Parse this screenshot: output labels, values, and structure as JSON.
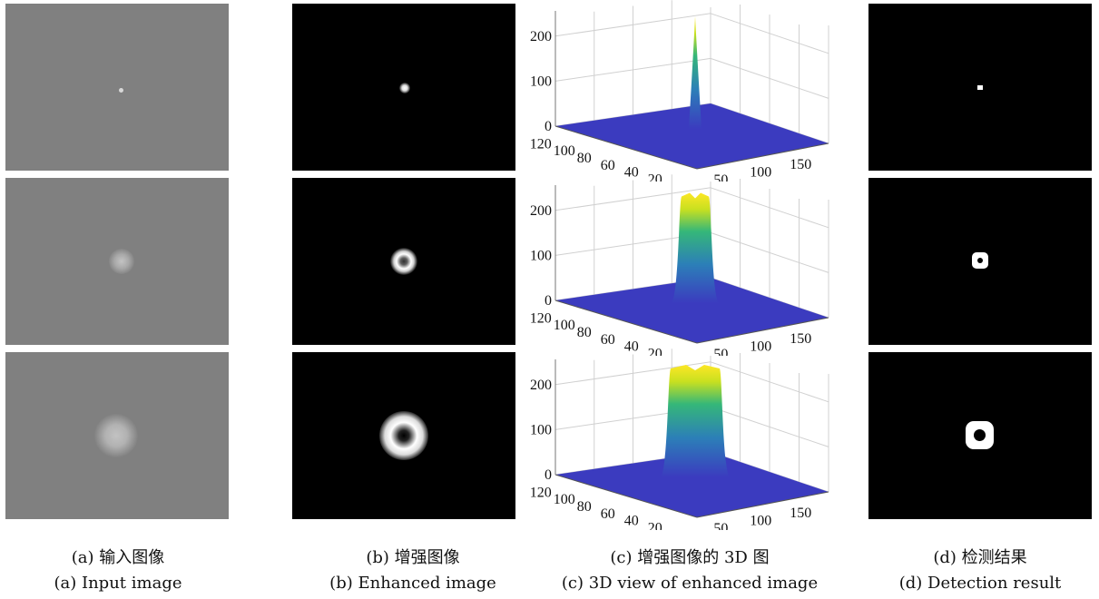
{
  "figure": {
    "columns": [
      {
        "id": "a",
        "caption_zh": "(a) 输入图像",
        "caption_en": "(a) Input image"
      },
      {
        "id": "b",
        "caption_zh": "(b) 增强图像",
        "caption_en": "(b) Enhanced image"
      },
      {
        "id": "c",
        "caption_zh": "(c) 增强图像的 3D 图",
        "caption_en": "(c) 3D view of enhanced image"
      },
      {
        "id": "d",
        "caption_zh": "(d) 检测结果",
        "caption_en": "(d) Detection result"
      }
    ],
    "rows": 3
  },
  "plot3d": {
    "z_ticks": [
      "0",
      "100",
      "200"
    ],
    "y_ticks": [
      "120",
      "100",
      "80",
      "60",
      "40",
      "20"
    ],
    "x_ticks": [
      "50",
      "100",
      "150"
    ],
    "surface_color": "#3b3bbf",
    "peak_colors": [
      "#2c7fb8",
      "#35b779",
      "#c8e020",
      "#fde725"
    ]
  },
  "chart_data": [
    {
      "type": "surface",
      "title": "",
      "zlim": [
        0,
        250
      ],
      "x_ticks": [
        50,
        100,
        150
      ],
      "y_ticks": [
        20,
        40,
        60,
        80,
        100,
        120
      ],
      "z_ticks": [
        0,
        100,
        200
      ],
      "peak_max": 250,
      "target_size": "small"
    },
    {
      "type": "surface",
      "title": "",
      "zlim": [
        0,
        250
      ],
      "x_ticks": [
        50,
        100,
        150
      ],
      "y_ticks": [
        20,
        40,
        60,
        80,
        100,
        120
      ],
      "z_ticks": [
        0,
        100,
        200
      ],
      "peak_max": 245,
      "target_size": "medium"
    },
    {
      "type": "surface",
      "title": "",
      "zlim": [
        0,
        250
      ],
      "x_ticks": [
        50,
        100,
        150
      ],
      "y_ticks": [
        20,
        40,
        60,
        80,
        100,
        120
      ],
      "z_ticks": [
        0,
        100,
        200
      ],
      "peak_max": 250,
      "target_size": "large"
    }
  ]
}
